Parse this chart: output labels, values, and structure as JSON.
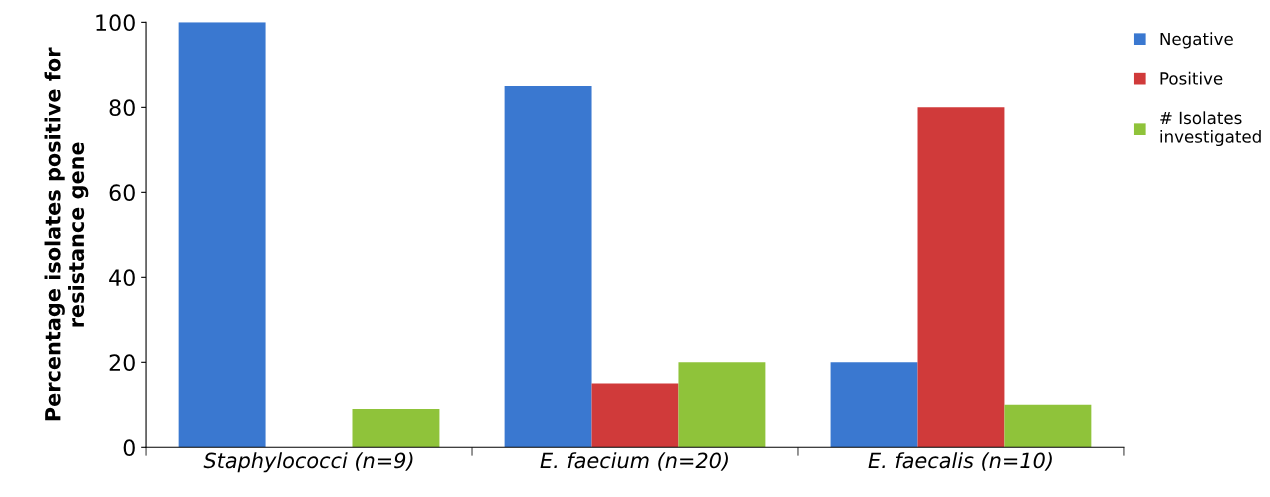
{
  "chart_data": {
    "type": "bar",
    "ylabel": "Percentage isolates positive for\nresistance gene",
    "categories": [
      "Staphylococci (n=9)",
      "E. faecium (n=20)",
      "E. faecalis (n=10)"
    ],
    "series": [
      {
        "name": "Negative",
        "color": "#3a78d0",
        "values": [
          100,
          85,
          20
        ]
      },
      {
        "name": "Positive",
        "color": "#d03a3a",
        "values": [
          0,
          15,
          80
        ]
      },
      {
        "name": "# Isolates\ninvestigated",
        "color": "#8fc33a",
        "values": [
          9,
          20,
          10
        ]
      }
    ],
    "ylim": [
      0,
      100
    ],
    "yticks": [
      0,
      20,
      40,
      60,
      80,
      100
    ],
    "grid": false,
    "legend": "right"
  }
}
